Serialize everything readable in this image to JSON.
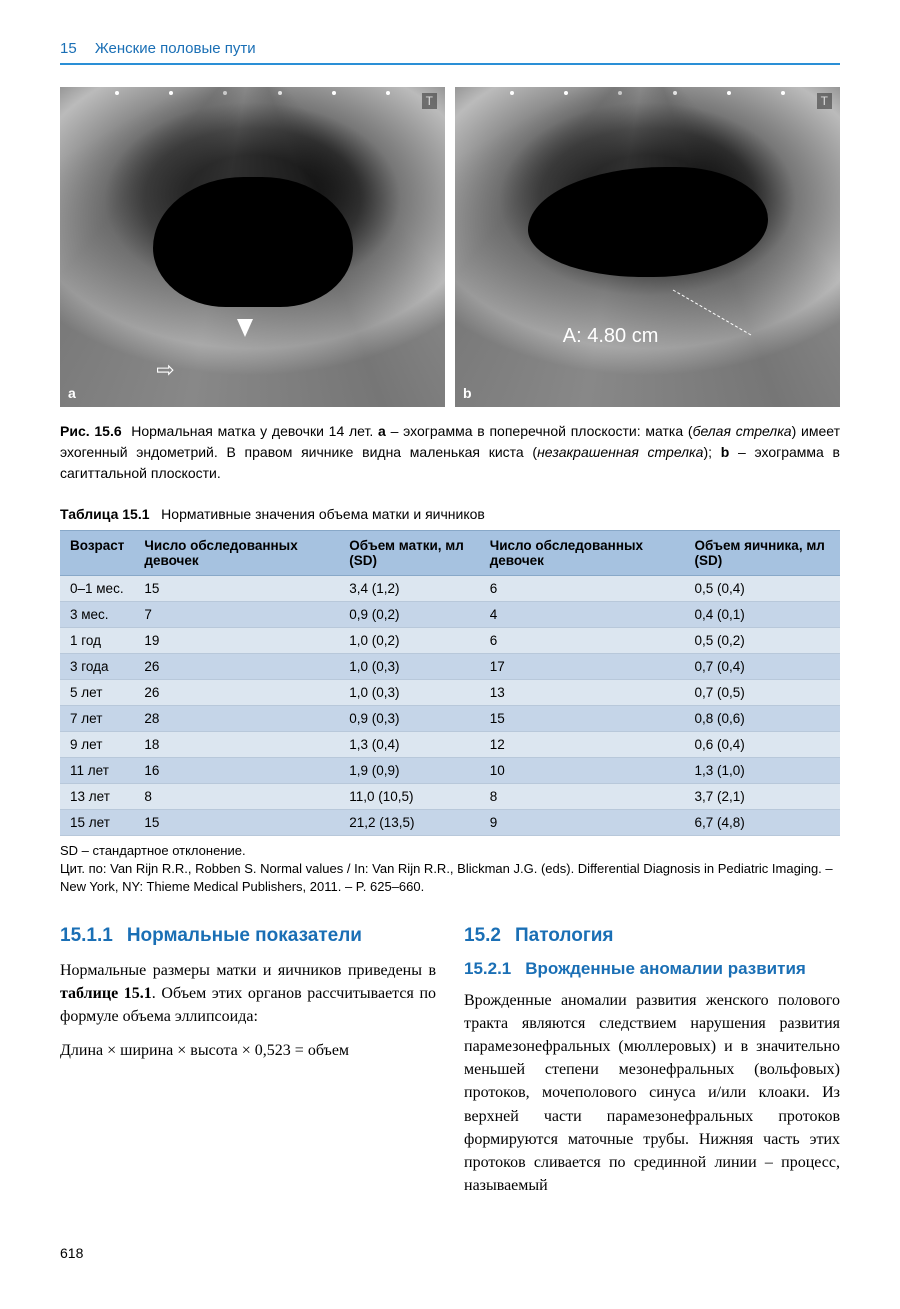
{
  "header": {
    "chapter_number": "15",
    "chapter_title": "Женские половые пути"
  },
  "figure": {
    "panel_a_label": "a",
    "panel_b_label": "b",
    "t_marker": "T",
    "measurement_text": "A: 4.80 cm",
    "caption_label": "Рис. 15.6",
    "caption_text_1": "Нормальная матка у девочки 14 лет. ",
    "caption_bold_a": "a",
    "caption_text_2": " – эхограмма в поперечной плоскости: матка (",
    "caption_italic_1": "белая стрелка",
    "caption_text_3": ") имеет эхогенный эндометрий. В правом яичнике видна маленькая киста (",
    "caption_italic_2": "незакрашенная стрелка",
    "caption_text_4": "); ",
    "caption_bold_b": "b",
    "caption_text_5": " – эхограмма в сагиттальной плоскости."
  },
  "table": {
    "title_label": "Таблица 15.1",
    "title_text": "Нормативные значения объема матки и яичников",
    "columns": [
      "Возраст",
      "Число обследованных девочек",
      "Объем матки, мл (SD)",
      "Число обследованных девочек",
      "Объем яичника, мл (SD)"
    ],
    "rows": [
      [
        "0–1 мес.",
        "15",
        "3,4 (1,2)",
        "6",
        "0,5 (0,4)"
      ],
      [
        "3 мес.",
        "7",
        "0,9 (0,2)",
        "4",
        "0,4 (0,1)"
      ],
      [
        "1 год",
        "19",
        "1,0 (0,2)",
        "6",
        "0,5 (0,2)"
      ],
      [
        "3 года",
        "26",
        "1,0 (0,3)",
        "17",
        "0,7 (0,4)"
      ],
      [
        "5 лет",
        "26",
        "1,0 (0,3)",
        "13",
        "0,7 (0,5)"
      ],
      [
        "7 лет",
        "28",
        "0,9 (0,3)",
        "15",
        "0,8 (0,6)"
      ],
      [
        "9 лет",
        "18",
        "1,3 (0,4)",
        "12",
        "0,6 (0,4)"
      ],
      [
        "11 лет",
        "16",
        "1,9 (0,9)",
        "10",
        "1,3 (1,0)"
      ],
      [
        "13 лет",
        "8",
        "11,0 (10,5)",
        "8",
        "3,7 (2,1)"
      ],
      [
        "15 лет",
        "15",
        "21,2 (13,5)",
        "9",
        "6,7 (4,8)"
      ]
    ],
    "footnote_1": "SD – стандартное отклонение.",
    "footnote_2": "Цит. по: Van Rijn R.R., Robben S. Normal values / In: Van Rijn R.R., Blickman J.G. (eds). Differential Diagnosis in Pediatric Imaging. – New York, NY: Thieme Medical Publishers, 2011. – P. 625–660.",
    "header_bg": "#a6c2e0",
    "row_odd_bg": "#dce6f0",
    "row_even_bg": "#c5d5e8",
    "border_color": "#b8c8da"
  },
  "left_column": {
    "heading_num": "15.1.1",
    "heading_text": "Нормальные показатели",
    "para_1a": "Нормальные размеры матки и яичников приведены в ",
    "para_1b": "таблице 15.1",
    "para_1c": ". Объем этих органов рассчитывается по формуле объема эллипсоида:",
    "formula": "Длина × ширина × высота × 0,523 = объем"
  },
  "right_column": {
    "heading_num": "15.2",
    "heading_text": "Патология",
    "sub_num": "15.2.1",
    "sub_text": "Врожденные аномалии развития",
    "para": "Врожденные аномалии развития женского полового тракта являются следствием нарушения развития парамезонефральных (мюллеровых) и в значительно меньшей степени мезонефральных (вольфовых) протоков, мочеполового синуса и/или клоаки. Из верхней части парамезонефральных протоков формируются маточные трубы. Нижняя часть этих протоков сливается по срединной линии – процесс, называемый"
  },
  "page_number": "618",
  "colors": {
    "accent": "#1a6fb5",
    "rule": "#2a8fd6"
  }
}
